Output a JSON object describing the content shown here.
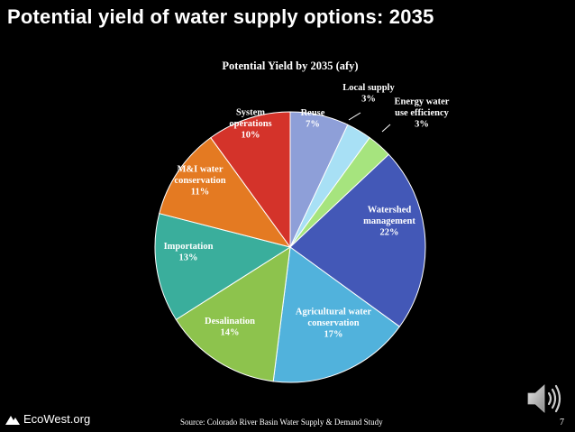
{
  "slide": {
    "title": "Potential yield of water supply options: 2035",
    "source": "Source: Colorado River Basin Water Supply & Demand Study",
    "page_number": "7",
    "logo_text": "EcoWest.org"
  },
  "icons": [
    "mountain-logo-icon",
    "speaker-icon"
  ],
  "chart_data": {
    "type": "pie",
    "title": "Potential Yield by 2035 (afy)",
    "unit": "%",
    "start_angle_deg": 0,
    "slices": [
      {
        "label": [
          "Reuse",
          "7%"
        ],
        "value": 7,
        "color": "#8e9fd8"
      },
      {
        "label": [
          "Local supply",
          "3%"
        ],
        "value": 3,
        "color": "#a8e0f5"
      },
      {
        "label": [
          "Energy water",
          "use efficiency",
          "3%"
        ],
        "value": 3,
        "color": "#a6e47e"
      },
      {
        "label": [
          "Watershed",
          "management",
          "22%"
        ],
        "value": 22,
        "color": "#4358b7"
      },
      {
        "label": [
          "Agricultural water",
          "conservation",
          "17%"
        ],
        "value": 17,
        "color": "#51b2dc"
      },
      {
        "label": [
          "Desalination",
          "14%"
        ],
        "value": 14,
        "color": "#8dc34d"
      },
      {
        "label": [
          "Importation",
          "13%"
        ],
        "value": 13,
        "color": "#3aae9c"
      },
      {
        "label": [
          "M&I water",
          "conservation",
          "11%"
        ],
        "value": 11,
        "color": "#e47a22"
      },
      {
        "label": [
          "System",
          "operations",
          "10%"
        ],
        "value": 10,
        "color": "#d4332a"
      }
    ]
  }
}
